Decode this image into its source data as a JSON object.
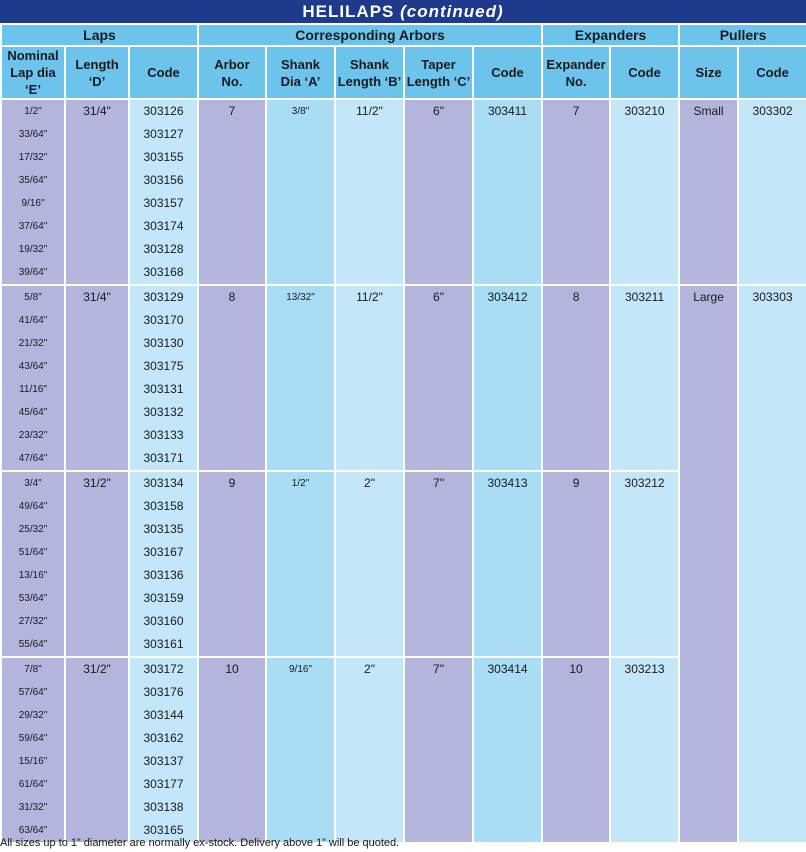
{
  "title": {
    "main": "HELILAPS",
    "cont": "(continued)"
  },
  "groups": {
    "laps": "Laps",
    "arbors": "Corresponding Arbors",
    "expanders": "Expanders",
    "pullers": "Pullers"
  },
  "headers": {
    "nominal": [
      "Nominal",
      "Lap dia ‘E’"
    ],
    "length": [
      "Length",
      "‘D’"
    ],
    "lap_code": "Code",
    "arbor_no": [
      "Arbor",
      "No."
    ],
    "shank_dia": [
      "Shank",
      "Dia ‘A’"
    ],
    "shank_len": [
      "Shank",
      "Length ‘B’"
    ],
    "taper_len": [
      "Taper",
      "Length ‘C’"
    ],
    "arbor_code": "Code",
    "expander_no": [
      "Expander",
      "No."
    ],
    "expander_code": "Code",
    "size": "Size",
    "puller_code": "Code"
  },
  "blocks": [
    {
      "nominal": [
        "1/2\"",
        "33/64\"",
        "17/32\"",
        "35/64\"",
        "9/16\"",
        "37/64\"",
        "19/32\"",
        "39/64\""
      ],
      "length": "31/4\"",
      "codes": [
        "303126",
        "303127",
        "303155",
        "303156",
        "303157",
        "303174",
        "303128",
        "303168"
      ],
      "arbor_no": "7",
      "shank_dia": "3/8\"",
      "shank_len": "11/2\"",
      "taper_len": "6\"",
      "arbor_code": "303411",
      "expander_no": "7",
      "expander_code": "303210"
    },
    {
      "nominal": [
        "5/8\"",
        "41/64\"",
        "21/32\"",
        "43/64\"",
        "11/16\"",
        "45/64\"",
        "23/32\"",
        "47/64\""
      ],
      "length": "31/4\"",
      "codes": [
        "303129",
        "303170",
        "303130",
        "303175",
        "303131",
        "303132",
        "303133",
        "303171"
      ],
      "arbor_no": "8",
      "shank_dia": "13/32\"",
      "shank_len": "11/2\"",
      "taper_len": "6\"",
      "arbor_code": "303412",
      "expander_no": "8",
      "expander_code": "303211"
    },
    {
      "nominal": [
        "3/4\"",
        "49/64\"",
        "25/32\"",
        "51/64\"",
        "13/16\"",
        "53/64\"",
        "27/32\"",
        "55/64\""
      ],
      "length": "31/2\"",
      "codes": [
        "303134",
        "303158",
        "303135",
        "303167",
        "303136",
        "303159",
        "303160",
        "303161"
      ],
      "arbor_no": "9",
      "shank_dia": "1/2\"",
      "shank_len": "2\"",
      "taper_len": "7\"",
      "arbor_code": "303413",
      "expander_no": "9",
      "expander_code": "303212"
    },
    {
      "nominal": [
        "7/8\"",
        "57/64\"",
        "29/32\"",
        "59/64\"",
        "15/16\"",
        "61/64\"",
        "31/32\"",
        "63/64\""
      ],
      "length": "31/2\"",
      "codes": [
        "303172",
        "303176",
        "303144",
        "303162",
        "303137",
        "303177",
        "303138",
        "303165"
      ],
      "arbor_no": "10",
      "shank_dia": "9/16\"",
      "shank_len": "2\"",
      "taper_len": "7\"",
      "arbor_code": "303414",
      "expander_no": "10",
      "expander_code": "303213"
    }
  ],
  "pullers": [
    {
      "size": "Small",
      "code": "303302"
    },
    {
      "size": "Large",
      "code": "303303"
    }
  ],
  "footnote": "All sizes up to 1” diameter are normally ex-stock. Delivery above 1” will be quoted."
}
